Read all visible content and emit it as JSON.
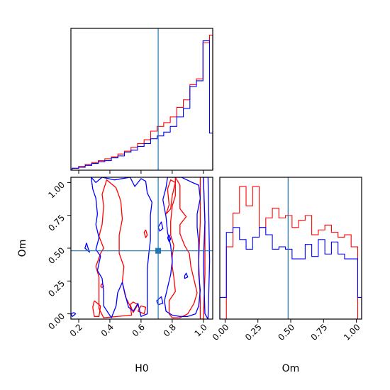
{
  "chart_data": {
    "type": "corner",
    "parameters": [
      "H0",
      "Om"
    ],
    "truth": {
      "H0": 0.71,
      "Om": 0.48
    },
    "truth_color": "#1f77b4",
    "series": [
      {
        "color": "#ff0000"
      },
      {
        "color": "#0000ff"
      }
    ],
    "hist_H0": {
      "xlim": [
        0.15,
        1.06
      ],
      "bin_edges": [
        0.1575,
        0.1995,
        0.2415,
        0.2835,
        0.3255,
        0.3675,
        0.4095,
        0.4515,
        0.4935,
        0.5355,
        0.5775,
        0.6195,
        0.6615,
        0.7035,
        0.7455,
        0.7875,
        0.8295,
        0.8715,
        0.9135,
        0.9555,
        0.9975,
        1.0395,
        1.06
      ],
      "red": [
        0.2,
        0.4,
        0.6,
        0.8,
        1.0,
        1.2,
        1.4,
        1.7,
        2.0,
        2.4,
        2.8,
        3.2,
        4.1,
        4.6,
        5.0,
        5.6,
        6.6,
        7.4,
        9.0,
        9.6,
        13.4,
        14.2
      ],
      "blue": [
        0.2,
        0.3,
        0.5,
        0.7,
        0.9,
        1.0,
        1.3,
        1.5,
        1.9,
        2.1,
        2.5,
        2.8,
        3.3,
        3.6,
        4.0,
        4.6,
        5.6,
        6.5,
        8.8,
        9.4,
        13.6,
        3.9
      ]
    },
    "hist_Om": {
      "xlim": [
        -0.04,
        1.04
      ],
      "xticks": [
        0.0,
        0.25,
        0.5,
        0.75,
        1.0
      ],
      "xticklabels": [
        "0.00",
        "0.25",
        "0.50",
        "0.75",
        "1.00"
      ],
      "xlabel": "Om",
      "bin_edges": [
        -0.04,
        0.01,
        0.06,
        0.11,
        0.16,
        0.21,
        0.26,
        0.31,
        0.36,
        0.41,
        0.46,
        0.51,
        0.56,
        0.61,
        0.66,
        0.71,
        0.76,
        0.81,
        0.86,
        0.91,
        0.96,
        1.01,
        1.04
      ],
      "red": [
        0,
        1.5,
        2.2,
        2.75,
        2.35,
        2.75,
        1.9,
        2.1,
        2.3,
        2.1,
        2.15,
        1.9,
        2.05,
        2.15,
        1.75,
        1.85,
        1.95,
        1.8,
        1.7,
        1.75,
        1.5,
        0
      ],
      "blue": [
        0.45,
        1.8,
        1.9,
        1.65,
        1.45,
        1.7,
        1.9,
        1.75,
        1.45,
        1.5,
        1.45,
        1.25,
        1.25,
        1.55,
        1.3,
        1.65,
        1.35,
        1.6,
        1.35,
        1.25,
        1.25,
        0.45
      ]
    },
    "contour": {
      "xlabel": "H0",
      "ylabel": "Om",
      "xlim": [
        0.15,
        1.06
      ],
      "ylim": [
        -0.04,
        1.04
      ],
      "xticks": [
        0.2,
        0.4,
        0.6,
        0.8,
        1.0
      ],
      "xticklabels": [
        "0.2",
        "0.4",
        "0.6",
        "0.8",
        "1.0"
      ],
      "yticks": [
        0.0,
        0.25,
        0.5,
        0.75,
        1.0
      ],
      "yticklabels": [
        "0.00",
        "0.25",
        "0.50",
        "0.75",
        "1.00"
      ],
      "red_paths": [
        [
          [
            0.33,
            0.59
          ],
          [
            0.35,
            0.68
          ],
          [
            0.36,
            0.82
          ],
          [
            0.35,
            0.91
          ],
          [
            0.38,
            1.02
          ],
          [
            0.44,
            0.96
          ],
          [
            0.47,
            0.86
          ],
          [
            0.48,
            0.72
          ],
          [
            0.46,
            0.6
          ],
          [
            0.46,
            0.46
          ],
          [
            0.49,
            0.36
          ],
          [
            0.48,
            0.24
          ],
          [
            0.5,
            0.13
          ],
          [
            0.53,
            0.06
          ],
          [
            0.54,
            -0.01
          ],
          [
            0.36,
            -0.03
          ],
          [
            0.33,
            0.04
          ],
          [
            0.33,
            0.13
          ],
          [
            0.33,
            0.28
          ],
          [
            0.31,
            0.36
          ],
          [
            0.34,
            0.46
          ],
          [
            0.36,
            0.5
          ],
          [
            0.33,
            0.59
          ]
        ],
        [
          [
            0.3,
            0.1
          ],
          [
            0.29,
            0.05
          ],
          [
            0.3,
            -0.02
          ],
          [
            0.33,
            -0.02
          ],
          [
            0.34,
            0.06
          ],
          [
            0.3,
            0.1
          ]
        ],
        [
          [
            0.53,
            0.07
          ],
          [
            0.55,
            0.01
          ],
          [
            0.58,
            0.07
          ],
          [
            0.55,
            0.09
          ],
          [
            0.53,
            0.07
          ]
        ],
        [
          [
            0.82,
            1.04
          ],
          [
            0.85,
            0.98
          ],
          [
            0.85,
            0.9
          ],
          [
            0.85,
            0.8
          ],
          [
            0.89,
            0.74
          ],
          [
            0.85,
            0.68
          ],
          [
            0.85,
            0.61
          ],
          [
            0.88,
            0.52
          ],
          [
            0.91,
            0.46
          ],
          [
            0.92,
            0.36
          ],
          [
            0.94,
            0.26
          ],
          [
            0.96,
            0.16
          ],
          [
            0.94,
            0.08
          ],
          [
            0.9,
            0.0
          ],
          [
            0.85,
            -0.03
          ],
          [
            0.8,
            -0.03
          ],
          [
            0.78,
            0.0
          ],
          [
            0.78,
            0.1
          ],
          [
            0.82,
            0.17
          ],
          [
            0.81,
            0.28
          ],
          [
            0.8,
            0.36
          ],
          [
            0.8,
            0.44
          ],
          [
            0.81,
            0.52
          ],
          [
            0.79,
            0.6
          ],
          [
            0.79,
            0.7
          ],
          [
            0.8,
            0.82
          ],
          [
            0.82,
            0.9
          ],
          [
            0.82,
            1.04
          ]
        ],
        [
          [
            0.98,
            1.04
          ],
          [
            0.98,
            0.7
          ],
          [
            0.97,
            0.4
          ],
          [
            0.98,
            0.1
          ],
          [
            0.98,
            -0.04
          ],
          [
            1.0,
            -0.04
          ],
          [
            1.01,
            0.3
          ],
          [
            1.01,
            0.7
          ],
          [
            1.0,
            1.04
          ],
          [
            0.98,
            1.04
          ]
        ],
        [
          [
            0.63,
            0.64
          ],
          [
            0.64,
            0.6
          ],
          [
            0.63,
            0.58
          ],
          [
            0.62,
            0.62
          ],
          [
            0.63,
            0.64
          ]
        ],
        [
          [
            0.34,
            0.21
          ],
          [
            0.35,
            0.23
          ],
          [
            0.36,
            0.21
          ],
          [
            0.35,
            0.2
          ],
          [
            0.34,
            0.21
          ]
        ],
        [
          [
            0.76,
            0.76
          ],
          [
            0.78,
            0.83
          ],
          [
            0.77,
            0.95
          ],
          [
            0.79,
            1.02
          ],
          [
            0.82,
            1.0
          ],
          [
            0.8,
            0.9
          ],
          [
            0.79,
            0.8
          ],
          [
            0.76,
            0.76
          ]
        ],
        [
          [
            0.58,
            0.02
          ],
          [
            0.62,
            0.0
          ],
          [
            0.63,
            0.05
          ],
          [
            0.6,
            0.06
          ],
          [
            0.58,
            0.02
          ]
        ]
      ],
      "blue_paths": [
        [
          [
            0.28,
            1.04
          ],
          [
            0.31,
            1.0
          ],
          [
            0.35,
            1.04
          ],
          [
            0.43,
            1.02
          ],
          [
            0.53,
            1.04
          ],
          [
            0.56,
            0.97
          ],
          [
            0.6,
            1.03
          ],
          [
            0.63,
            1.01
          ],
          [
            0.64,
            0.92
          ],
          [
            0.67,
            0.85
          ],
          [
            0.66,
            0.75
          ],
          [
            0.66,
            0.66
          ],
          [
            0.66,
            0.56
          ],
          [
            0.65,
            0.46
          ],
          [
            0.64,
            0.34
          ],
          [
            0.64,
            0.22
          ],
          [
            0.64,
            0.1
          ],
          [
            0.64,
            0.0
          ],
          [
            0.6,
            -0.02
          ],
          [
            0.58,
            0.08
          ],
          [
            0.55,
            0.02
          ],
          [
            0.52,
            0.05
          ],
          [
            0.5,
            0.14
          ],
          [
            0.48,
            0.24
          ],
          [
            0.45,
            0.16
          ],
          [
            0.44,
            0.06
          ],
          [
            0.41,
            -0.03
          ],
          [
            0.36,
            0.06
          ],
          [
            0.36,
            0.17
          ],
          [
            0.35,
            0.27
          ],
          [
            0.32,
            0.33
          ],
          [
            0.34,
            0.44
          ],
          [
            0.31,
            0.49
          ],
          [
            0.33,
            0.58
          ],
          [
            0.31,
            0.68
          ],
          [
            0.32,
            0.76
          ],
          [
            0.31,
            0.88
          ],
          [
            0.29,
            0.95
          ],
          [
            0.28,
            1.04
          ]
        ],
        [
          [
            0.25,
            0.54
          ],
          [
            0.26,
            0.5
          ],
          [
            0.27,
            0.47
          ],
          [
            0.24,
            0.5
          ],
          [
            0.25,
            0.54
          ]
        ],
        [
          [
            0.17,
            0.01
          ],
          [
            0.18,
            0.0
          ],
          [
            0.16,
            -0.02
          ],
          [
            0.15,
            0.0
          ],
          [
            0.17,
            0.01
          ]
        ],
        [
          [
            0.74,
            0.87
          ],
          [
            0.76,
            0.96
          ],
          [
            0.77,
            1.04
          ],
          [
            0.86,
            1.04
          ],
          [
            0.93,
            1.0
          ],
          [
            0.97,
            0.98
          ],
          [
            0.98,
            0.88
          ],
          [
            0.96,
            0.76
          ],
          [
            0.96,
            0.66
          ],
          [
            0.97,
            0.54
          ],
          [
            0.97,
            0.42
          ],
          [
            0.97,
            0.3
          ],
          [
            0.98,
            0.18
          ],
          [
            0.97,
            0.06
          ],
          [
            0.95,
            0.0
          ],
          [
            0.9,
            -0.02
          ],
          [
            0.85,
            -0.02
          ],
          [
            0.8,
            -0.01
          ],
          [
            0.76,
            0.02
          ],
          [
            0.75,
            0.1
          ],
          [
            0.77,
            0.2
          ],
          [
            0.79,
            0.3
          ],
          [
            0.8,
            0.4
          ],
          [
            0.79,
            0.52
          ],
          [
            0.77,
            0.62
          ],
          [
            0.76,
            0.74
          ],
          [
            0.74,
            0.87
          ]
        ],
        [
          [
            1.0,
            1.04
          ],
          [
            1.01,
            0.7
          ],
          [
            1.0,
            0.4
          ],
          [
            1.01,
            0.0
          ],
          [
            1.03,
            -0.04
          ],
          [
            1.04,
            0.4
          ],
          [
            1.03,
            1.04
          ],
          [
            1.0,
            1.04
          ]
        ],
        [
          [
            0.7,
            0.1
          ],
          [
            0.73,
            0.13
          ],
          [
            0.74,
            0.08
          ],
          [
            0.71,
            0.07
          ],
          [
            0.7,
            0.1
          ]
        ],
        [
          [
            0.71,
            0.66
          ],
          [
            0.73,
            0.7
          ],
          [
            0.74,
            0.65
          ],
          [
            0.72,
            0.63
          ],
          [
            0.71,
            0.66
          ]
        ],
        [
          [
            0.88,
            0.29
          ],
          [
            0.89,
            0.31
          ],
          [
            0.9,
            0.28
          ],
          [
            0.88,
            0.27
          ],
          [
            0.88,
            0.29
          ]
        ],
        [
          [
            0.77,
            0.58
          ],
          [
            0.78,
            0.6
          ],
          [
            0.79,
            0.57
          ],
          [
            0.78,
            0.55
          ],
          [
            0.77,
            0.58
          ]
        ]
      ]
    }
  }
}
